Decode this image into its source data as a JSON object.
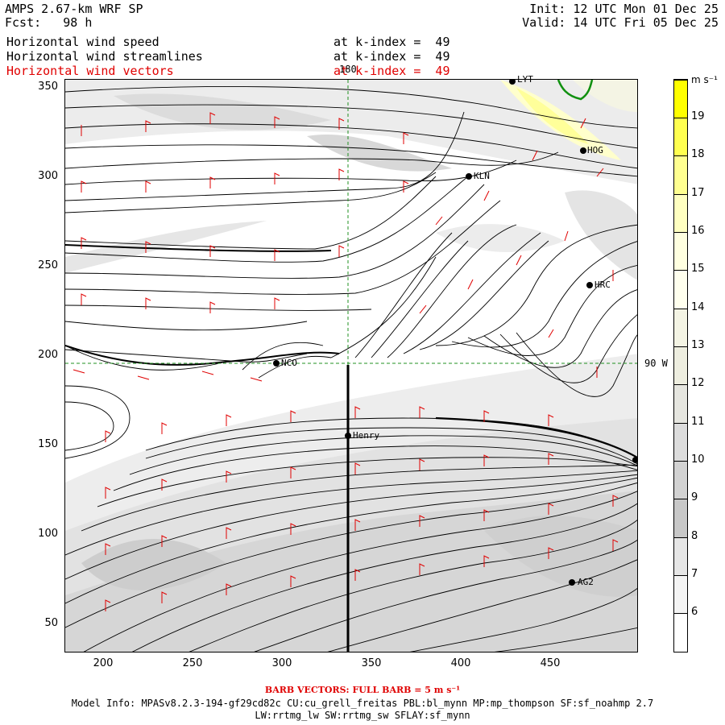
{
  "header": {
    "model_title": "AMPS 2.67-km WRF SP",
    "forecast": "Fcst:   98 h",
    "init": "Init: 12 UTC Mon 01 Dec 25",
    "valid": "Valid: 14 UTC Fri 05 Dec 25"
  },
  "fields": [
    {
      "name": "Horizontal wind speed",
      "level": "at k-index =  49",
      "color": "#000000"
    },
    {
      "name": "Horizontal wind streamlines",
      "level": "at k-index =  49",
      "color": "#000000"
    },
    {
      "name": "Horizontal wind vectors",
      "level": "at k-index =  49",
      "color": "#e00000"
    }
  ],
  "map": {
    "x_ticks": [
      "200",
      "250",
      "300",
      "350",
      "400",
      "450"
    ],
    "y_ticks": [
      "350",
      "300",
      "250",
      "200",
      "150",
      "100",
      "50"
    ],
    "meridian_label": "180",
    "parallel_label": "90 W",
    "stations": [
      {
        "id": "LYT",
        "label": "LYT"
      },
      {
        "id": "HOG",
        "label": "HOG"
      },
      {
        "id": "KLN",
        "label": "KLN"
      },
      {
        "id": "HRC",
        "label": "HRC"
      },
      {
        "id": "NCO",
        "label": "NCO"
      },
      {
        "id": "Henry",
        "label": "Henry"
      },
      {
        "id": "AG2",
        "label": "AG2"
      }
    ]
  },
  "colorbar": {
    "unit": "m s⁻¹",
    "labels": [
      "19",
      "18",
      "17",
      "16",
      "15",
      "14",
      "13",
      "12",
      "11",
      "10",
      "9",
      "8",
      "7",
      "6"
    ],
    "colors": [
      "#ffff00",
      "#ffff50",
      "#ffff90",
      "#ffffc0",
      "#ffffe0",
      "#ffffee",
      "#f4f4e4",
      "#eeeee0",
      "#e6e6e0",
      "#dcdcdc",
      "#d2d2d2",
      "#c8c8c8",
      "#e6e6e6",
      "#f4f4f4",
      "#ffffff"
    ]
  },
  "footer": {
    "barb_note": "BARB VECTORS:  FULL BARB = 5 m s⁻¹",
    "model_info": "Model Info: MPASv8.2.3-194-gf29cd82c CU:cu_grell_freitas PBL:bl_mynn MP:mp_thompson SF:sf_noahmp 2.7",
    "physics": "LW:rrtmg_lw SW:rrtmg_sw SFLAY:sf_mynn"
  }
}
